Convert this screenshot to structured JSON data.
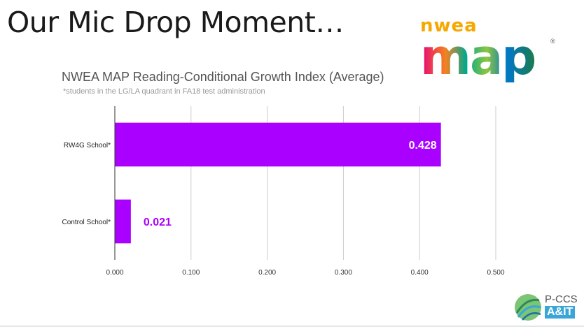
{
  "slide": {
    "title": "Our Mic Drop Moment…"
  },
  "logos": {
    "nwea_text": "nwea",
    "map_text": "map",
    "registered": "®",
    "pccs_line1": "P-CCS",
    "pccs_line2": "A&IT"
  },
  "colors": {
    "bar": "#aa00ff",
    "value_label_inside": "#ffffff",
    "value_label_outside": "#aa00ff",
    "grid": "#cccccc",
    "axis": "#333333"
  },
  "chart_data": {
    "type": "bar",
    "orientation": "horizontal",
    "title": "NWEA MAP Reading-Conditional Growth Index (Average)",
    "subtitle": "*students in the LG/LA quadrant in FA18 test administration",
    "categories": [
      "RW4G School*",
      "Control School*"
    ],
    "values": [
      0.428,
      0.021
    ],
    "data_labels": [
      "0.428",
      "0.021"
    ],
    "xlim": [
      0,
      0.5
    ],
    "xticks": [
      "0.000",
      "0.100",
      "0.200",
      "0.300",
      "0.400",
      "0.500"
    ],
    "xtick_values": [
      0,
      0.1,
      0.2,
      0.3,
      0.4,
      0.5
    ],
    "grid": true,
    "legend": "none"
  }
}
